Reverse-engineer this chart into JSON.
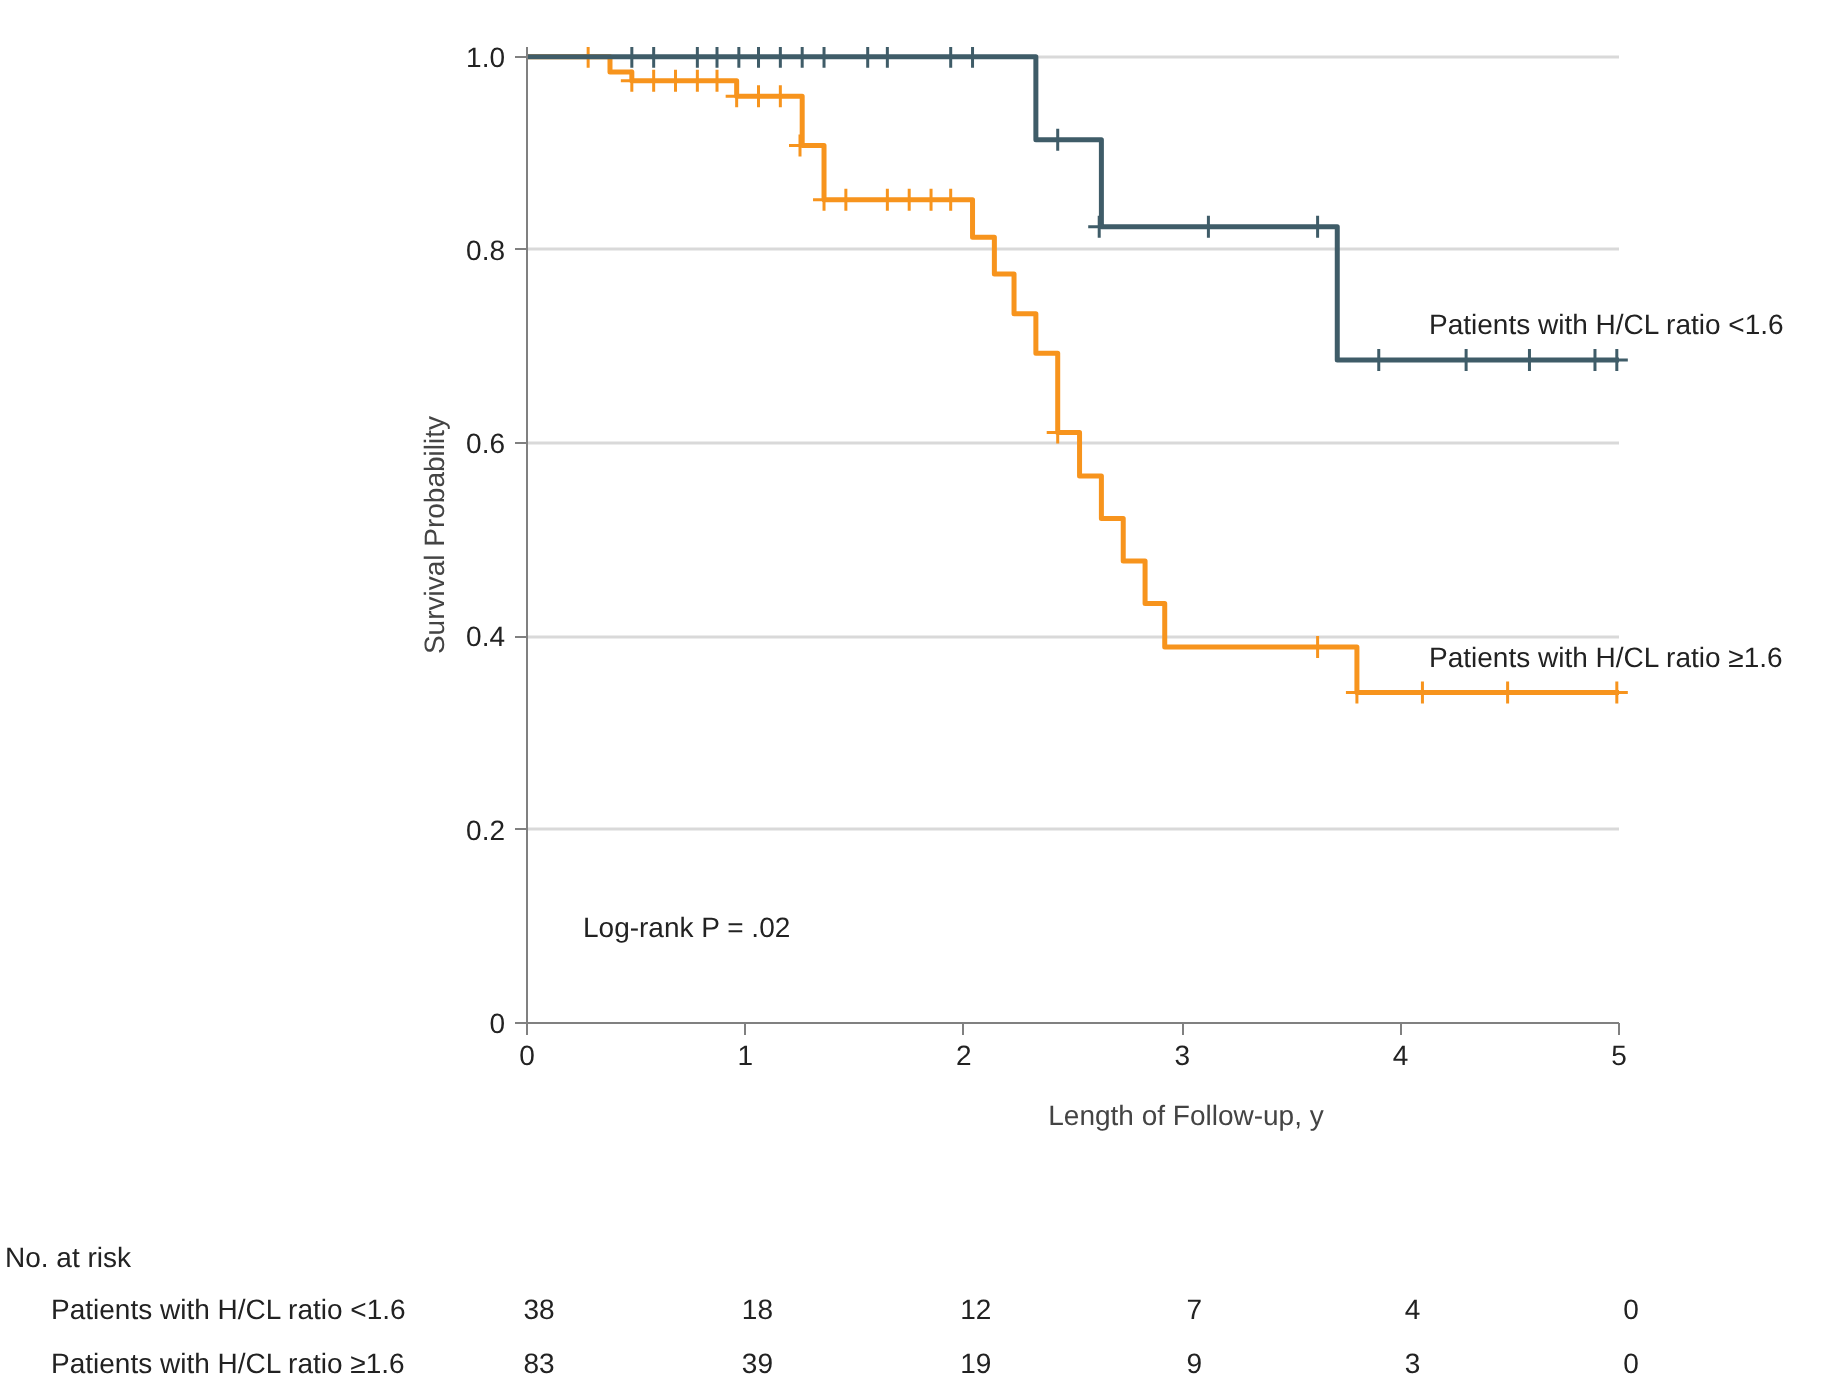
{
  "chart_data": {
    "type": "step",
    "xlabel": "Length of Follow-up, y",
    "ylabel": "Survival Probability",
    "xlim": [
      0,
      5
    ],
    "xticks": [
      0,
      1,
      2,
      3,
      4,
      5
    ],
    "ylim": [
      0,
      1.01
    ],
    "yticks": [
      {
        "value": 0,
        "label": "0"
      },
      {
        "value": 0.2,
        "label": "0.2"
      },
      {
        "value": 0.4,
        "label": "0.4"
      },
      {
        "value": 0.6,
        "label": "0.6"
      },
      {
        "value": 0.8,
        "label": "0.8"
      },
      {
        "value": 1.0,
        "label": "1.0"
      }
    ],
    "grid": "y",
    "line_style": "solid",
    "series": [
      {
        "name": "Patients with H/CL ratio <1.6",
        "color": "#3f5c68",
        "x": [
          0,
          2.33,
          2.63,
          3.71,
          5
        ],
        "values": [
          1.0,
          0.914,
          0.824,
          0.686,
          0.686
        ]
      },
      {
        "name": "Patients with H/CL ratio ≥1.6",
        "color": "#f7941d",
        "x": [
          0,
          0.38,
          0.48,
          0.96,
          1.26,
          1.36,
          2.04,
          2.14,
          2.23,
          2.33,
          2.43,
          2.53,
          2.63,
          2.73,
          2.83,
          2.92,
          3.8,
          5
        ],
        "values": [
          1.0,
          0.984,
          0.975,
          0.959,
          0.908,
          0.852,
          0.813,
          0.775,
          0.734,
          0.693,
          0.611,
          0.566,
          0.522,
          0.478,
          0.434,
          0.389,
          0.342,
          0.342
        ]
      },
      {
        "type": "scatter",
        "marker": "cross",
        "color": "#3f5c68",
        "x": [
          0.48,
          0.58,
          0.78,
          0.87,
          0.97,
          1.06,
          1.16,
          1.26,
          1.36,
          1.56,
          1.65,
          1.94,
          2.04,
          2.43,
          2.62,
          3.12,
          3.62,
          3.9,
          4.3,
          4.59,
          4.89,
          4.99
        ],
        "values": [
          1,
          1,
          1,
          1,
          1,
          1,
          1,
          1,
          1,
          1,
          1,
          1,
          1,
          0.914,
          0.824,
          0.824,
          0.824,
          0.686,
          0.686,
          0.686,
          0.686,
          0.686
        ]
      },
      {
        "type": "scatter",
        "marker": "cross",
        "color": "#f7941d",
        "x": [
          0.28,
          0.48,
          0.58,
          0.68,
          0.78,
          0.87,
          0.96,
          1.06,
          1.16,
          1.25,
          1.36,
          1.46,
          1.65,
          1.75,
          1.85,
          1.94,
          2.43,
          3.62,
          3.8,
          4.1,
          4.49,
          4.99
        ],
        "values": [
          1,
          0.975,
          0.975,
          0.975,
          0.975,
          0.975,
          0.959,
          0.959,
          0.959,
          0.908,
          0.852,
          0.852,
          0.852,
          0.852,
          0.852,
          0.852,
          0.611,
          0.389,
          0.342,
          0.342,
          0.342,
          0.342
        ]
      }
    ],
    "annotations": [
      "Log-rank P = .02",
      "No. at risk",
      "Patients with H/CL ratio <1.6",
      "38",
      "18",
      "12",
      "7",
      "4",
      "0",
      "Patients with H/CL ratio ≥1.6",
      "83",
      "39",
      "19",
      "9",
      "3",
      "0"
    ]
  }
}
